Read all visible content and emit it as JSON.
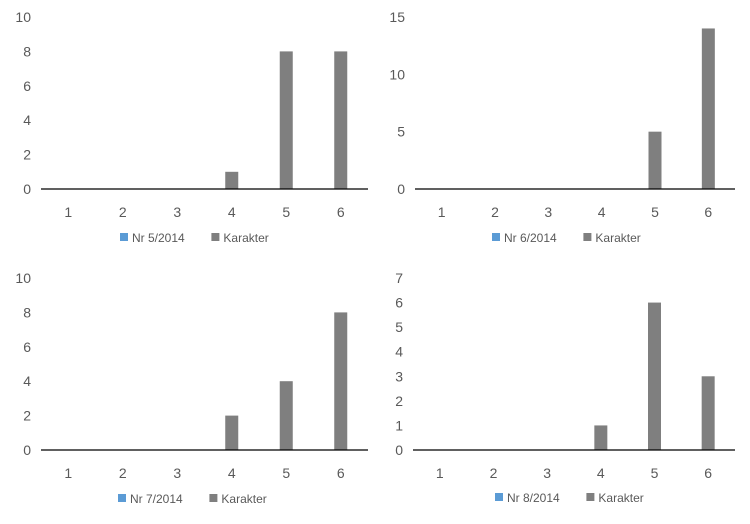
{
  "colors": {
    "series1": "#5B9BD5",
    "series2": "#7F7F7F",
    "axis": "#000000",
    "text": "#595959"
  },
  "chart_data": [
    {
      "type": "bar",
      "categories": [
        "1",
        "2",
        "3",
        "4",
        "5",
        "6"
      ],
      "series": [
        {
          "name": "Nr 5/2014",
          "values": [
            0,
            0,
            0,
            0,
            0,
            0
          ]
        },
        {
          "name": "Karakter",
          "values": [
            0,
            0,
            0,
            1,
            8,
            8
          ]
        }
      ],
      "yticks": [
        0,
        2,
        4,
        6,
        8,
        10
      ],
      "ylim": [
        0,
        10
      ],
      "grid": false,
      "legend": "bottom"
    },
    {
      "type": "bar",
      "categories": [
        "1",
        "2",
        "3",
        "4",
        "5",
        "6"
      ],
      "series": [
        {
          "name": "Nr 6/2014",
          "values": [
            0,
            0,
            0,
            0,
            0,
            0
          ]
        },
        {
          "name": "Karakter",
          "values": [
            0,
            0,
            0,
            0,
            5,
            14
          ]
        }
      ],
      "yticks": [
        0,
        5,
        10,
        15
      ],
      "ylim": [
        0,
        15
      ],
      "grid": false,
      "legend": "bottom"
    },
    {
      "type": "bar",
      "categories": [
        "1",
        "2",
        "3",
        "4",
        "5",
        "6"
      ],
      "series": [
        {
          "name": "Nr 7/2014",
          "values": [
            0,
            0,
            0,
            0,
            0,
            0
          ]
        },
        {
          "name": "Karakter",
          "values": [
            0,
            0,
            0,
            2,
            4,
            8
          ]
        }
      ],
      "yticks": [
        0,
        2,
        4,
        6,
        8,
        10
      ],
      "ylim": [
        0,
        10
      ],
      "grid": false,
      "legend": "bottom"
    },
    {
      "type": "bar",
      "categories": [
        "1",
        "2",
        "3",
        "4",
        "5",
        "6"
      ],
      "series": [
        {
          "name": "Nr 8/2014",
          "values": [
            0,
            0,
            0,
            0,
            0,
            0
          ]
        },
        {
          "name": "Karakter",
          "values": [
            0,
            0,
            0,
            1,
            6,
            3
          ]
        }
      ],
      "yticks": [
        0,
        1,
        2,
        3,
        4,
        5,
        6,
        7
      ],
      "ylim": [
        0,
        7
      ],
      "grid": false,
      "legend": "bottom"
    }
  ]
}
